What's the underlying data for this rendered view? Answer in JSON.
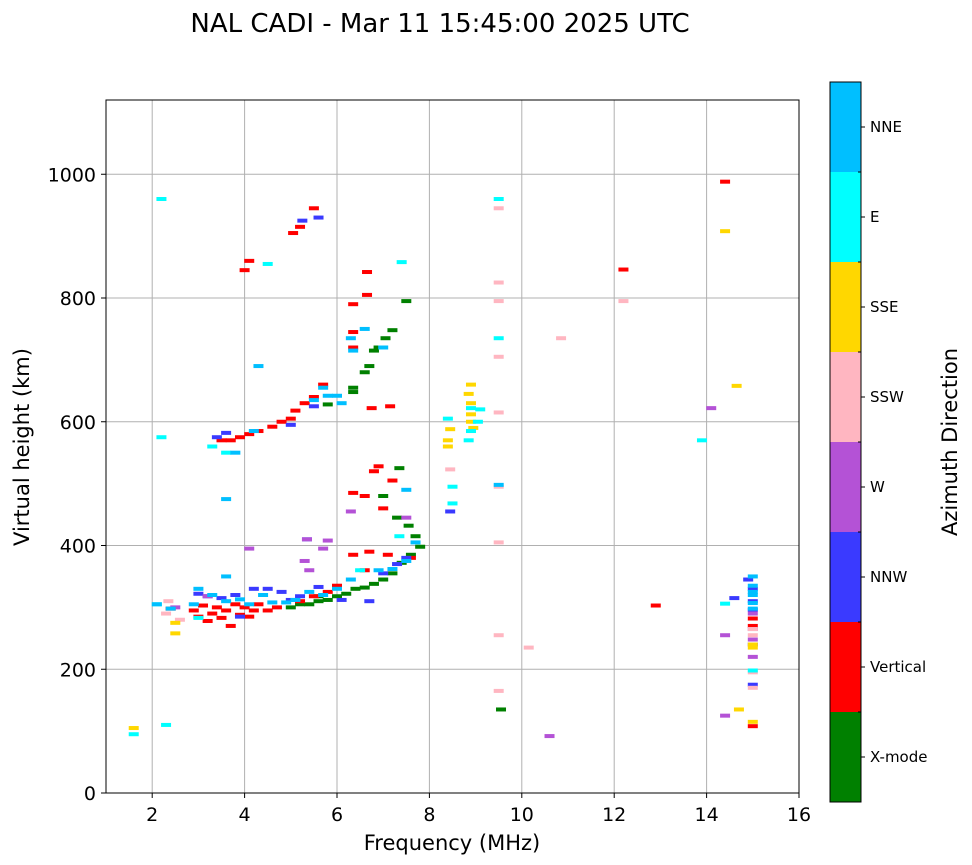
{
  "chart_data": {
    "type": "scatter",
    "title": "NAL CADI - Mar 11 15:45:00 2025 UTC",
    "xlabel": "Frequency (MHz)",
    "ylabel": "Virtual height (km)",
    "xlim": [
      1,
      16
    ],
    "ylim": [
      0,
      1120
    ],
    "xticks": [
      2,
      4,
      6,
      8,
      10,
      12,
      14,
      16
    ],
    "yticks": [
      0,
      200,
      400,
      600,
      800,
      1000
    ],
    "grid": true,
    "colorbar": {
      "label": "Azimuth Direction",
      "categories": [
        "X-mode",
        "Vertical",
        "NNW",
        "W",
        "SSW",
        "SSE",
        "E",
        "NNE"
      ],
      "colors": [
        "#008000",
        "#ff0000",
        "#3a3aff",
        "#b452d6",
        "#ffb6c1",
        "#ffd700",
        "#00ffff",
        "#00bfff"
      ]
    },
    "series": [
      {
        "name": "X-mode",
        "points": [
          [
            5.0,
            300
          ],
          [
            5.2,
            305
          ],
          [
            5.4,
            305
          ],
          [
            5.6,
            310
          ],
          [
            5.8,
            312
          ],
          [
            6.0,
            318
          ],
          [
            6.2,
            322
          ],
          [
            6.4,
            330
          ],
          [
            6.6,
            332
          ],
          [
            6.8,
            338
          ],
          [
            7.0,
            345
          ],
          [
            7.2,
            355
          ],
          [
            7.4,
            372
          ],
          [
            7.6,
            385
          ],
          [
            7.8,
            398
          ],
          [
            6.35,
            655
          ],
          [
            6.35,
            648
          ],
          [
            6.6,
            680
          ],
          [
            6.7,
            690
          ],
          [
            6.8,
            715
          ],
          [
            6.9,
            720
          ],
          [
            7.05,
            735
          ],
          [
            7.2,
            748
          ],
          [
            5.8,
            628
          ],
          [
            7.7,
            415
          ],
          [
            7.55,
            432
          ],
          [
            7.3,
            445
          ],
          [
            9.55,
            135
          ],
          [
            7.35,
            525
          ],
          [
            7.5,
            795
          ],
          [
            7.0,
            480
          ],
          [
            5.6,
            318
          ]
        ]
      },
      {
        "name": "Vertical",
        "points": [
          [
            2.4,
            298
          ],
          [
            2.9,
            295
          ],
          [
            3.0,
            285
          ],
          [
            3.1,
            303
          ],
          [
            3.2,
            278
          ],
          [
            3.3,
            290
          ],
          [
            3.4,
            300
          ],
          [
            3.5,
            283
          ],
          [
            3.6,
            295
          ],
          [
            3.7,
            270
          ],
          [
            3.8,
            305
          ],
          [
            3.9,
            288
          ],
          [
            4.0,
            300
          ],
          [
            4.1,
            285
          ],
          [
            4.2,
            295
          ],
          [
            4.3,
            305
          ],
          [
            4.5,
            295
          ],
          [
            4.7,
            300
          ],
          [
            5.2,
            310
          ],
          [
            5.5,
            318
          ],
          [
            5.8,
            325
          ],
          [
            6.0,
            335
          ],
          [
            6.35,
            385
          ],
          [
            6.7,
            390
          ],
          [
            3.5,
            570
          ],
          [
            3.7,
            570
          ],
          [
            3.9,
            575
          ],
          [
            4.1,
            580
          ],
          [
            4.3,
            585
          ],
          [
            4.6,
            592
          ],
          [
            4.8,
            600
          ],
          [
            5.0,
            605
          ],
          [
            5.1,
            618
          ],
          [
            5.3,
            630
          ],
          [
            5.5,
            640
          ],
          [
            5.7,
            660
          ],
          [
            5.05,
            905
          ],
          [
            5.2,
            915
          ],
          [
            5.5,
            945
          ],
          [
            4.1,
            860
          ],
          [
            4.0,
            845
          ],
          [
            6.35,
            790
          ],
          [
            6.65,
            805
          ],
          [
            6.65,
            842
          ],
          [
            6.35,
            745
          ],
          [
            6.35,
            720
          ],
          [
            6.75,
            622
          ],
          [
            7.15,
            625
          ],
          [
            6.35,
            485
          ],
          [
            6.6,
            480
          ],
          [
            6.9,
            528
          ],
          [
            7.2,
            505
          ],
          [
            7.1,
            385
          ],
          [
            7.0,
            460
          ],
          [
            7.6,
            380
          ],
          [
            12.9,
            303
          ],
          [
            14.4,
            988
          ],
          [
            12.2,
            846
          ],
          [
            15.0,
            108
          ],
          [
            15.0,
            270
          ],
          [
            15.0,
            282
          ],
          [
            6.8,
            520
          ],
          [
            6.6,
            360
          ]
        ]
      },
      {
        "name": "NNW",
        "points": [
          [
            3.0,
            322
          ],
          [
            3.2,
            318
          ],
          [
            3.5,
            315
          ],
          [
            3.8,
            320
          ],
          [
            4.2,
            330
          ],
          [
            4.5,
            330
          ],
          [
            4.8,
            325
          ],
          [
            5.0,
            312
          ],
          [
            5.2,
            318
          ],
          [
            5.6,
            333
          ],
          [
            6.1,
            312
          ],
          [
            6.7,
            310
          ],
          [
            7.0,
            355
          ],
          [
            7.3,
            370
          ],
          [
            7.5,
            380
          ],
          [
            3.4,
            575
          ],
          [
            3.6,
            582
          ],
          [
            5.0,
            595
          ],
          [
            5.5,
            625
          ],
          [
            5.6,
            930
          ],
          [
            5.25,
            925
          ],
          [
            8.45,
            455
          ],
          [
            14.6,
            315
          ],
          [
            14.9,
            345
          ],
          [
            15.0,
            330
          ],
          [
            15.0,
            310
          ],
          [
            15.0,
            296
          ],
          [
            15.0,
            175
          ],
          [
            15.0,
            240
          ],
          [
            5.35,
            410
          ],
          [
            3.9,
            285
          ]
        ]
      },
      {
        "name": "W",
        "points": [
          [
            5.3,
            375
          ],
          [
            5.4,
            360
          ],
          [
            4.1,
            395
          ],
          [
            5.7,
            395
          ],
          [
            6.3,
            455
          ],
          [
            5.35,
            410
          ],
          [
            5.8,
            408
          ],
          [
            15.0,
            290
          ],
          [
            15.0,
            265
          ],
          [
            15.0,
            248
          ],
          [
            15.0,
            220
          ],
          [
            14.4,
            255
          ],
          [
            14.4,
            125
          ],
          [
            14.1,
            622
          ],
          [
            10.6,
            92
          ],
          [
            2.5,
            300
          ],
          [
            3.2,
            318
          ],
          [
            7.5,
            445
          ]
        ]
      },
      {
        "name": "SSW",
        "points": [
          [
            9.5,
            825
          ],
          [
            9.5,
            795
          ],
          [
            9.5,
            945
          ],
          [
            9.5,
            705
          ],
          [
            9.5,
            615
          ],
          [
            9.5,
            495
          ],
          [
            9.5,
            405
          ],
          [
            9.5,
            255
          ],
          [
            9.5,
            165
          ],
          [
            10.15,
            235
          ],
          [
            10.85,
            735
          ],
          [
            12.2,
            795
          ],
          [
            8.45,
            523
          ],
          [
            15.0,
            170
          ],
          [
            15.0,
            195
          ],
          [
            15.0,
            255
          ],
          [
            15.0,
            265
          ],
          [
            2.3,
            290
          ],
          [
            2.35,
            310
          ],
          [
            2.6,
            280
          ]
        ]
      },
      {
        "name": "SSE",
        "points": [
          [
            8.9,
            660
          ],
          [
            8.85,
            645
          ],
          [
            8.9,
            630
          ],
          [
            8.9,
            612
          ],
          [
            8.9,
            600
          ],
          [
            8.95,
            590
          ],
          [
            8.45,
            588
          ],
          [
            8.4,
            570
          ],
          [
            8.4,
            560
          ],
          [
            14.4,
            908
          ],
          [
            14.65,
            658
          ],
          [
            15.0,
            115
          ],
          [
            15.0,
            240
          ],
          [
            15.0,
            235
          ],
          [
            14.7,
            135
          ],
          [
            1.6,
            105
          ],
          [
            2.5,
            258
          ],
          [
            2.5,
            275
          ]
        ]
      },
      {
        "name": "E",
        "points": [
          [
            8.9,
            622
          ],
          [
            8.9,
            585
          ],
          [
            8.85,
            570
          ],
          [
            9.1,
            620
          ],
          [
            9.05,
            600
          ],
          [
            8.4,
            605
          ],
          [
            8.5,
            495
          ],
          [
            8.5,
            468
          ],
          [
            9.5,
            960
          ],
          [
            9.5,
            735
          ],
          [
            7.4,
            858
          ],
          [
            13.9,
            570
          ],
          [
            14.4,
            306
          ],
          [
            15.0,
            198
          ],
          [
            2.1,
            305
          ],
          [
            2.2,
            960
          ],
          [
            2.2,
            575
          ],
          [
            1.6,
            95
          ],
          [
            2.3,
            110
          ],
          [
            3.0,
            283
          ],
          [
            4.5,
            855
          ],
          [
            3.6,
            550
          ],
          [
            3.3,
            560
          ],
          [
            7.35,
            415
          ],
          [
            6.5,
            360
          ]
        ]
      },
      {
        "name": "NNE",
        "points": [
          [
            2.9,
            305
          ],
          [
            3.0,
            330
          ],
          [
            3.3,
            320
          ],
          [
            3.6,
            310
          ],
          [
            3.9,
            313
          ],
          [
            4.1,
            305
          ],
          [
            4.4,
            320
          ],
          [
            4.6,
            308
          ],
          [
            4.9,
            308
          ],
          [
            5.1,
            312
          ],
          [
            5.4,
            325
          ],
          [
            5.7,
            320
          ],
          [
            6.0,
            330
          ],
          [
            6.3,
            345
          ],
          [
            6.9,
            360
          ],
          [
            7.2,
            362
          ],
          [
            7.5,
            375
          ],
          [
            7.7,
            405
          ],
          [
            3.8,
            550
          ],
          [
            4.2,
            585
          ],
          [
            4.3,
            690
          ],
          [
            5.5,
            635
          ],
          [
            5.7,
            655
          ],
          [
            6.3,
            735
          ],
          [
            6.35,
            715
          ],
          [
            6.6,
            750
          ],
          [
            7.0,
            720
          ],
          [
            7.5,
            490
          ],
          [
            3.6,
            475
          ],
          [
            5.8,
            642
          ],
          [
            6.0,
            642
          ],
          [
            6.1,
            630
          ],
          [
            2.1,
            305
          ],
          [
            2.4,
            298
          ],
          [
            3.6,
            350
          ],
          [
            9.5,
            498
          ],
          [
            15.0,
            350
          ],
          [
            15.0,
            335
          ],
          [
            15.0,
            325
          ],
          [
            15.0,
            320
          ],
          [
            15.0,
            307
          ],
          [
            15.0,
            298
          ]
        ]
      }
    ]
  }
}
